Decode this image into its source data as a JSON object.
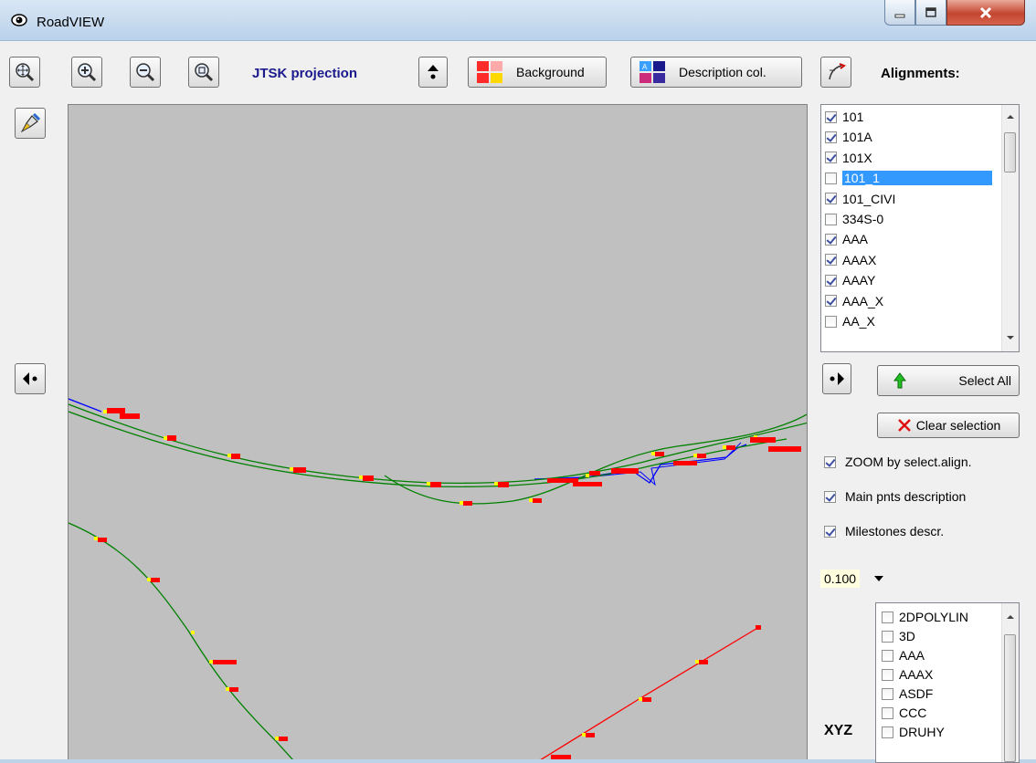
{
  "window": {
    "title": "RoadVIEW"
  },
  "toolbar": {
    "projection_label": "JTSK projection",
    "background_label": "Background",
    "description_label": "Description col.",
    "alignments_label": "Alignments:"
  },
  "alignments": {
    "items": [
      {
        "label": "101",
        "checked": true
      },
      {
        "label": "101A",
        "checked": true
      },
      {
        "label": "101X",
        "checked": true
      },
      {
        "label": "101_1",
        "checked": false,
        "selected": true
      },
      {
        "label": "101_CIVI",
        "checked": true
      },
      {
        "label": "334S-0",
        "checked": false
      },
      {
        "label": "AAA",
        "checked": true
      },
      {
        "label": "AAAX",
        "checked": true
      },
      {
        "label": "AAAY",
        "checked": true
      },
      {
        "label": "AAA_X",
        "checked": true
      },
      {
        "label": "AA_X",
        "checked": false
      }
    ],
    "select_all_label": "Select All",
    "clear_selection_label": "Clear selection"
  },
  "options": {
    "zoom_label": "ZOOM by select.align.",
    "main_points_label": "Main pnts description",
    "milestones_label": "Milestones descr.",
    "scale_value": "0.100"
  },
  "xyz": {
    "label": "XYZ",
    "items": [
      "2DPOLYLIN",
      "3D",
      "AAA",
      "AAAX",
      "ASDF",
      "CCC",
      "DRUHY"
    ]
  },
  "colors": {
    "map_background": "#c0c0c0",
    "alignment_green": "#008000",
    "alignment_blue": "#0000ff",
    "alignment_red": "#ff0000",
    "point_label_red": "#ff0000",
    "point_marker_yellow": "#ffff00",
    "selection_blue": "#3399ff",
    "projection_text": "#1a1a8c"
  }
}
